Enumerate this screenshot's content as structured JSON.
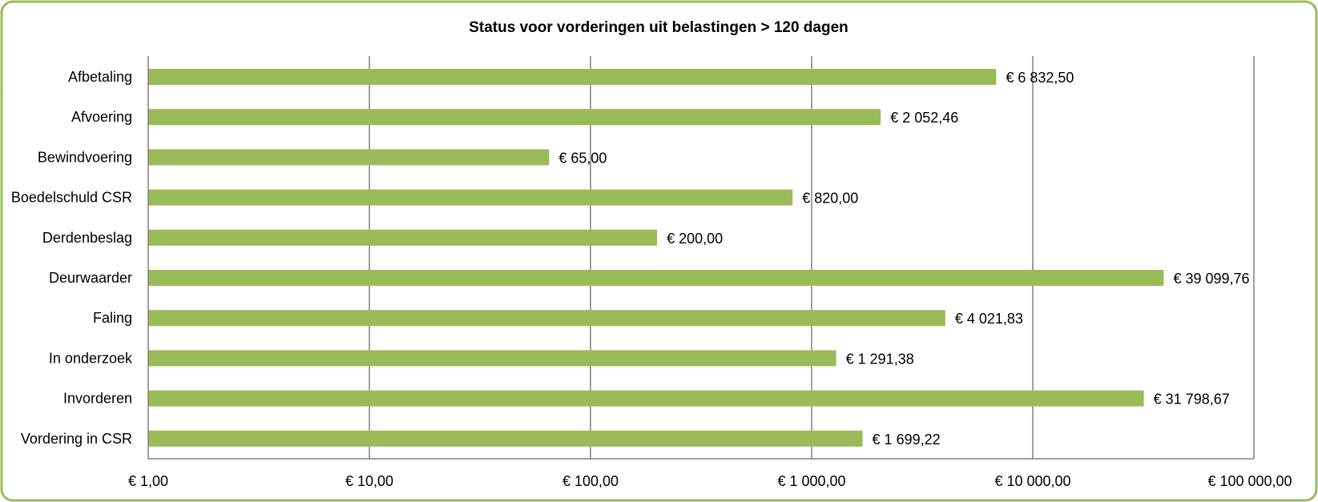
{
  "chart_data": {
    "type": "bar",
    "orientation": "horizontal",
    "title": "Status voor vorderingen uit belastingen > 120 dagen",
    "xlabel": "",
    "ylabel": "",
    "x_scale": "log",
    "xlim": [
      1,
      100000
    ],
    "grid": "vertical major gridlines",
    "legend": "none",
    "bar_color": "#9BBB59",
    "frame_color": "#9BBB59",
    "categories": [
      "Afbetaling",
      "Afvoering",
      "Bewindvoering",
      "Boedelschuld CSR",
      "Derdenbeslag",
      "Deurwaarder",
      "Faling",
      "In onderzoek",
      "Invorderen",
      "Vordering in CSR"
    ],
    "values": [
      6832.5,
      2052.46,
      65.0,
      820.0,
      200.0,
      39099.76,
      4021.83,
      1291.38,
      31798.67,
      1699.22
    ],
    "data_labels": [
      "€ 6 832,50",
      "€ 2 052,46",
      "€  65,00",
      "€  820,00",
      "€  200,00",
      "€ 39 099,76",
      "€ 4 021,83",
      "€ 1 291,38",
      "€ 31 798,67",
      "€ 1 699,22"
    ],
    "ticks": [
      1,
      10,
      100,
      1000,
      10000,
      100000
    ],
    "tick_labels": [
      "€  1,00",
      "€  10,00",
      "€  100,00",
      "€ 1 000,00",
      "€ 10 000,00",
      "€ 100 000,00"
    ]
  }
}
